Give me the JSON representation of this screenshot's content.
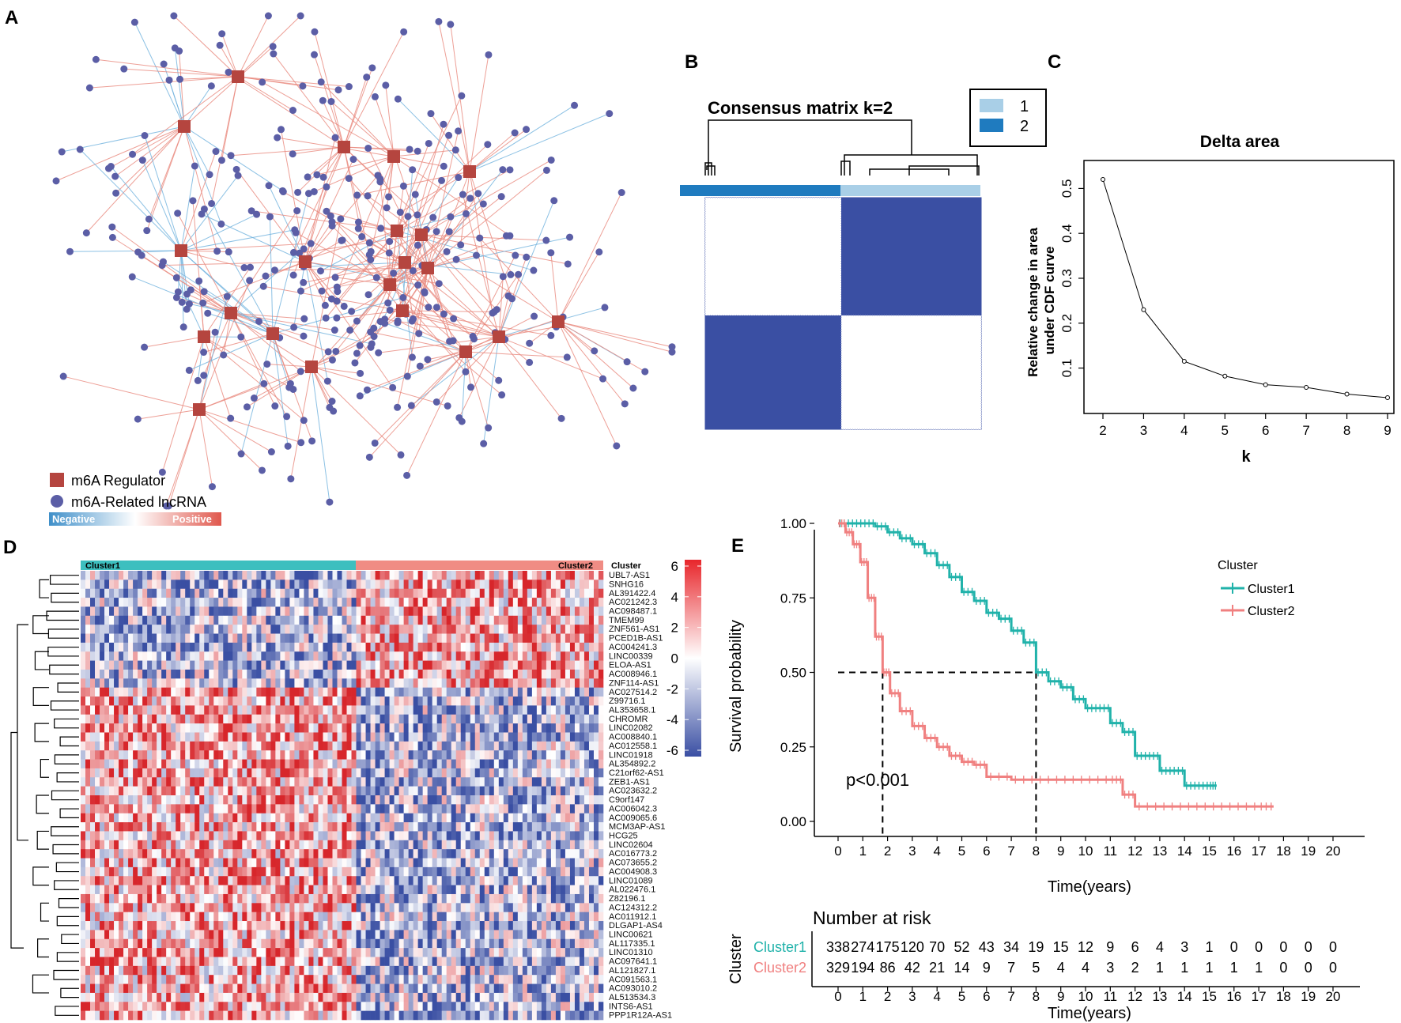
{
  "panels": {
    "a": "A",
    "b": "B",
    "c": "C",
    "d": "D",
    "e": "E"
  },
  "network": {
    "legend_regulator": "m6A Regulator",
    "legend_lncrna": "m6A-Related lncRNA",
    "gradient_negative": "Negative",
    "gradient_positive": "Positive",
    "colors": {
      "regulator": "#b5453f",
      "lncrna": "#5b5ea6",
      "negative": "#5aa6d6",
      "positive": "#e36b5e"
    }
  },
  "consensus": {
    "title": "Consensus matrix k=2",
    "legend": [
      "1",
      "2"
    ],
    "colors": {
      "c1": "#a9cfe7",
      "c2": "#1f7bbf",
      "matrix": "#3a4fa3"
    }
  },
  "chart_data": [
    {
      "type": "line",
      "title": "Delta area",
      "xlabel": "k",
      "ylabel": "Relative change in area under CDF curve",
      "x": [
        2,
        3,
        4,
        5,
        6,
        7,
        8,
        9
      ],
      "values": [
        0.52,
        0.23,
        0.115,
        0.082,
        0.063,
        0.057,
        0.042,
        0.034
      ],
      "xlim": [
        2,
        9
      ],
      "ylim": [
        0.02,
        0.55
      ],
      "yticks": [
        "0.1",
        "0.2",
        "0.3",
        "0.4",
        "0.5"
      ],
      "ytick_values": [
        0.1,
        0.2,
        0.3,
        0.4,
        0.5
      ]
    },
    {
      "type": "heatmap",
      "column_groups": [
        "Cluster1",
        "Cluster2"
      ],
      "annotation_label": "Cluster",
      "rows": [
        "UBL7-AS1",
        "SNHG16",
        "AL391422.4",
        "AC021242.3",
        "AC098487.1",
        "TMEM99",
        "ZNF561-AS1",
        "PCED1B-AS1",
        "AC004241.3",
        "LINC00339",
        "ELOA-AS1",
        "AC008946.1",
        "ZNF114-AS1",
        "AC027514.2",
        "Z99716.1",
        "AL353658.1",
        "CHROMR",
        "LINC02082",
        "AC008840.1",
        "AC012558.1",
        "LINC01918",
        "AL354892.2",
        "C21orf62-AS1",
        "ZEB1-AS1",
        "AC023632.2",
        "C9orf147",
        "AC006042.3",
        "AC009065.6",
        "MCM3AP-AS1",
        "HCG25",
        "LINC02604",
        "AC016773.2",
        "AC073655.2",
        "AC004908.3",
        "LINC01089",
        "AL022476.1",
        "Z82196.1",
        "AC124312.2",
        "AC011912.1",
        "DLGAP1-AS4",
        "LINC00621",
        "AL117335.1",
        "LINC01310",
        "AC097641.1",
        "AL121827.1",
        "AC091563.1",
        "AC093010.2",
        "AL513534.3",
        "INTS6-AS1",
        "PPP1R12A-AS1"
      ],
      "colorbar_ticks": [
        "6",
        "4",
        "2",
        "0",
        "-2",
        "-4",
        "-6"
      ],
      "colorbar_values": [
        6,
        4,
        2,
        0,
        -2,
        -4,
        -6
      ],
      "colors": {
        "cluster1": "#3dbfbf",
        "cluster2": "#f08c84",
        "high": "#e8262b",
        "low": "#3a4fa3",
        "mid": "#ffffff"
      }
    },
    {
      "type": "line",
      "title": "",
      "xlabel": "Time(years)",
      "ylabel": "Survival probability",
      "legend_title": "Cluster",
      "series": [
        {
          "name": "Cluster1",
          "color": "#20b2aa",
          "x": [
            0,
            0.5,
            1,
            1.5,
            2,
            2.5,
            3,
            3.5,
            4,
            4.5,
            5,
            5.5,
            6,
            6.5,
            7,
            7.5,
            8,
            8.5,
            9,
            9.5,
            10,
            10.5,
            11,
            11.5,
            12,
            12.5,
            13,
            13.5,
            14,
            14.5,
            15,
            15.3
          ],
          "values": [
            1,
            1,
            1,
            0.99,
            0.97,
            0.95,
            0.93,
            0.9,
            0.86,
            0.82,
            0.77,
            0.74,
            0.7,
            0.68,
            0.64,
            0.6,
            0.5,
            0.47,
            0.45,
            0.41,
            0.38,
            0.38,
            0.33,
            0.3,
            0.22,
            0.22,
            0.17,
            0.17,
            0.12,
            0.12,
            0.12,
            0.12
          ]
        },
        {
          "name": "Cluster2",
          "color": "#f08080",
          "x": [
            0,
            0.3,
            0.6,
            0.9,
            1.2,
            1.5,
            1.8,
            2.1,
            2.5,
            3,
            3.5,
            4,
            4.5,
            5,
            5.5,
            6,
            7,
            8,
            9,
            10,
            11,
            11.5,
            12,
            13,
            14,
            15,
            16,
            17,
            17.6
          ],
          "values": [
            1,
            0.97,
            0.93,
            0.87,
            0.75,
            0.62,
            0.5,
            0.43,
            0.37,
            0.32,
            0.28,
            0.25,
            0.22,
            0.2,
            0.19,
            0.15,
            0.14,
            0.14,
            0.14,
            0.14,
            0.14,
            0.09,
            0.05,
            0.05,
            0.05,
            0.05,
            0.05,
            0.05,
            0.05
          ]
        }
      ],
      "xticks": [
        "0",
        "1",
        "2",
        "3",
        "4",
        "5",
        "6",
        "7",
        "8",
        "9",
        "10",
        "11",
        "12",
        "13",
        "14",
        "15",
        "16",
        "17",
        "18",
        "19",
        "20"
      ],
      "xtick_values": [
        0,
        1,
        2,
        3,
        4,
        5,
        6,
        7,
        8,
        9,
        10,
        11,
        12,
        13,
        14,
        15,
        16,
        17,
        18,
        19,
        20
      ],
      "yticks": [
        "0.00",
        "0.25",
        "0.50",
        "0.75",
        "1.00"
      ],
      "ytick_values": [
        0,
        0.25,
        0.5,
        0.75,
        1.0
      ],
      "xlim": [
        -0.5,
        21
      ],
      "ylim": [
        0,
        1
      ],
      "annotation": "p<0.001",
      "median_survival": [
        1.8,
        8.0
      ]
    }
  ],
  "risk_table": {
    "title": "Number at risk",
    "ylabel": "Cluster",
    "xlabel": "Time(years)",
    "rows": [
      {
        "name": "Cluster1",
        "color": "#20b2aa",
        "values": [
          "338",
          "274",
          "175",
          "120",
          "70",
          "52",
          "43",
          "34",
          "19",
          "15",
          "12",
          "9",
          "6",
          "4",
          "3",
          "1",
          "0",
          "0",
          "0",
          "0",
          "0"
        ]
      },
      {
        "name": "Cluster2",
        "color": "#f08080",
        "values": [
          "329",
          "194",
          "86",
          "42",
          "21",
          "14",
          "9",
          "7",
          "5",
          "4",
          "4",
          "3",
          "2",
          "1",
          "1",
          "1",
          "1",
          "1",
          "0",
          "0",
          "0"
        ]
      }
    ],
    "xticks": [
      "0",
      "1",
      "2",
      "3",
      "4",
      "5",
      "6",
      "7",
      "8",
      "9",
      "10",
      "11",
      "12",
      "13",
      "14",
      "15",
      "16",
      "17",
      "18",
      "19",
      "20"
    ]
  }
}
